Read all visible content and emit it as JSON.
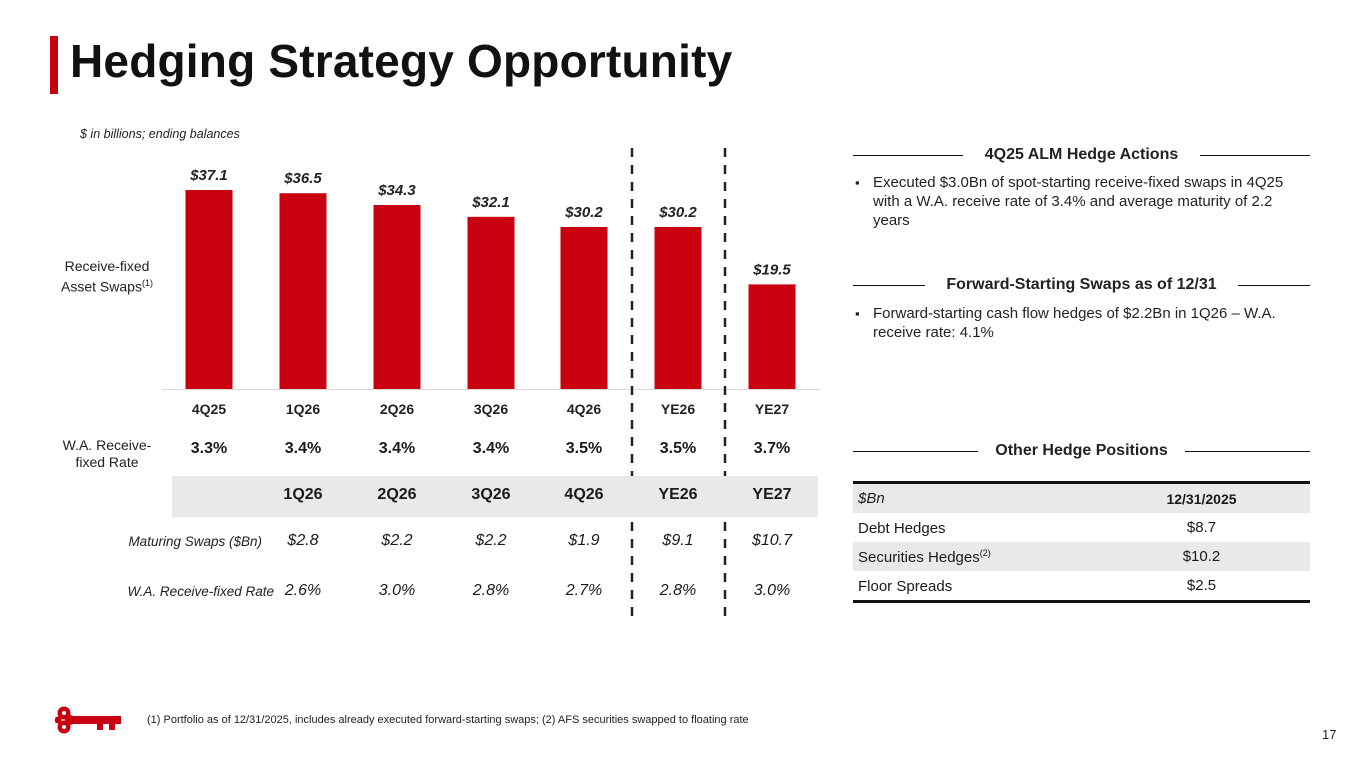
{
  "title": "Hedging Strategy Opportunity",
  "units_note": "$ in billions; ending balances",
  "chart_data": {
    "type": "bar",
    "categories": [
      "4Q25",
      "1Q26",
      "2Q26",
      "3Q26",
      "4Q26",
      "YE26",
      "YE27"
    ],
    "values": [
      37.1,
      36.5,
      34.3,
      32.1,
      30.2,
      30.2,
      19.5
    ],
    "value_labels": [
      "$37.1",
      "$36.5",
      "$34.3",
      "$32.1",
      "$30.2",
      "$30.2",
      "$19.5"
    ],
    "ylim": [
      0,
      40
    ],
    "bar_color": "#c8000f",
    "row_label": "Receive-fixed Asset Swaps",
    "row_label_line1": "Receive-fixed",
    "row_label_line2": "Asset Swaps",
    "row_label_sup": "(1)"
  },
  "rates": {
    "label_line1": "W.A. Receive-",
    "label_line2": "fixed Rate",
    "values": [
      "3.3%",
      "3.4%",
      "3.4%",
      "3.4%",
      "3.5%",
      "3.5%",
      "3.7%"
    ]
  },
  "maturing": {
    "headers": [
      "1Q26",
      "2Q26",
      "3Q26",
      "4Q26",
      "YE26",
      "YE27"
    ],
    "swaps_label": "Maturing Swaps ($Bn)",
    "swaps": [
      "$2.8",
      "$2.2",
      "$2.2",
      "$1.9",
      "$9.1",
      "$10.7"
    ],
    "rate_label": "W.A. Receive-fixed Rate",
    "rates": [
      "2.6%",
      "3.0%",
      "2.8%",
      "2.7%",
      "2.8%",
      "3.0%"
    ]
  },
  "sections": {
    "alm": {
      "title": "4Q25 ALM Hedge Actions",
      "bullet": "Executed $3.0Bn of spot-starting receive-fixed swaps in 4Q25 with a W.A. receive rate of 3.4% and average maturity of 2.2 years"
    },
    "forward": {
      "title": "Forward-Starting Swaps as of 12/31",
      "bullet": "Forward-starting cash flow hedges of $2.2Bn in 1Q26 – W.A. receive rate: 4.1%"
    },
    "other": {
      "title": "Other Hedge Positions",
      "col1": "$Bn",
      "col2": "12/31/2025",
      "rows": [
        {
          "label": "Debt Hedges",
          "sup": "",
          "value": "$8.7"
        },
        {
          "label": "Securities Hedges",
          "sup": "(2)",
          "value": "$10.2"
        },
        {
          "label": "Floor Spreads",
          "sup": "",
          "value": "$2.5"
        }
      ]
    }
  },
  "bullet_glyph": "▪",
  "footnote": "(1) Portfolio as of 12/31/2025, includes already executed forward-starting swaps; (2) AFS securities swapped to floating rate",
  "page_number": "17",
  "colors": {
    "accent": "#c8000f",
    "table_shade": "#e9e9e9"
  },
  "logo_icon": "key-logo-icon"
}
